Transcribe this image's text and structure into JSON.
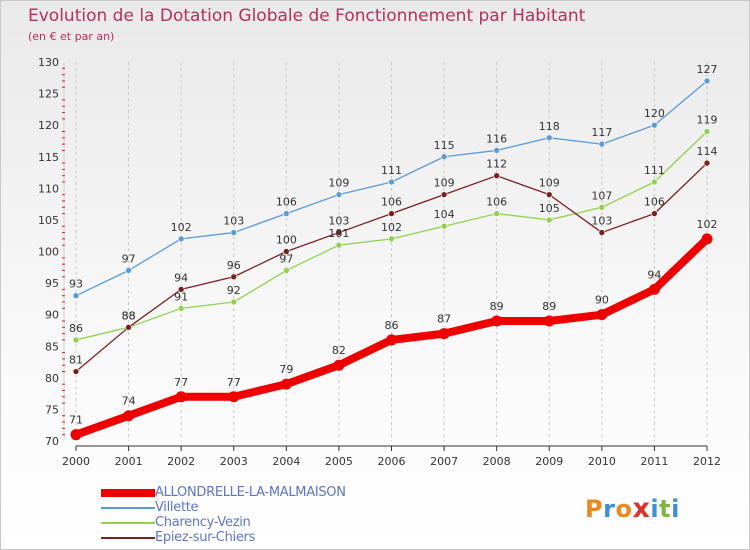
{
  "header": {
    "title": "Evolution de la Dotation Globale de Fonctionnement par Habitant",
    "subtitle": "(en € et par an)"
  },
  "logo": {
    "text": "ProXiti",
    "letters": [
      "P",
      "r",
      "o",
      "x",
      "i",
      "t",
      "i"
    ],
    "colors": [
      "#e98a1f",
      "#3a8fd6",
      "#e98a1f",
      "#d9312b",
      "#3a8fd6",
      "#7fb63e",
      "#3a8fd6"
    ]
  },
  "colors": {
    "title": "#b5305c",
    "grid": "#c9c9c9",
    "legend_text": "#5f74c7"
  },
  "chart_data": {
    "type": "line",
    "x": [
      2000,
      2001,
      2002,
      2003,
      2004,
      2005,
      2006,
      2007,
      2008,
      2009,
      2010,
      2011,
      2012
    ],
    "ylim": [
      70,
      130
    ],
    "yticks": [
      70,
      75,
      80,
      85,
      90,
      95,
      100,
      105,
      110,
      115,
      120,
      125,
      130
    ],
    "grid": "vertical dashed",
    "legend_position": "bottom-left",
    "series": [
      {
        "name": "Villette",
        "color": "#5b9bd5",
        "values": [
          93,
          97,
          102,
          103,
          106,
          109,
          111,
          115,
          116,
          118,
          117,
          120,
          127
        ]
      },
      {
        "name": "Charency-Vezin",
        "color": "#8fd14f",
        "values": [
          86,
          88,
          91,
          92,
          97,
          101,
          102,
          104,
          106,
          105,
          107,
          111,
          119
        ]
      },
      {
        "name": "Epiez-sur-Chiers",
        "color": "#7b1f1f",
        "values": [
          81,
          88,
          94,
          96,
          100,
          103,
          106,
          109,
          112,
          109,
          103,
          106,
          114
        ]
      },
      {
        "name": "ALLONDRELLE-LA-MALMAISON",
        "color": "#ee0000",
        "emphasis": true,
        "values": [
          71,
          74,
          77,
          77,
          79,
          82,
          86,
          87,
          89,
          89,
          90,
          94,
          102
        ]
      }
    ],
    "legend_order": [
      "ALLONDRELLE-LA-MALMAISON",
      "Villette",
      "Charency-Vezin",
      "Epiez-sur-Chiers"
    ]
  }
}
